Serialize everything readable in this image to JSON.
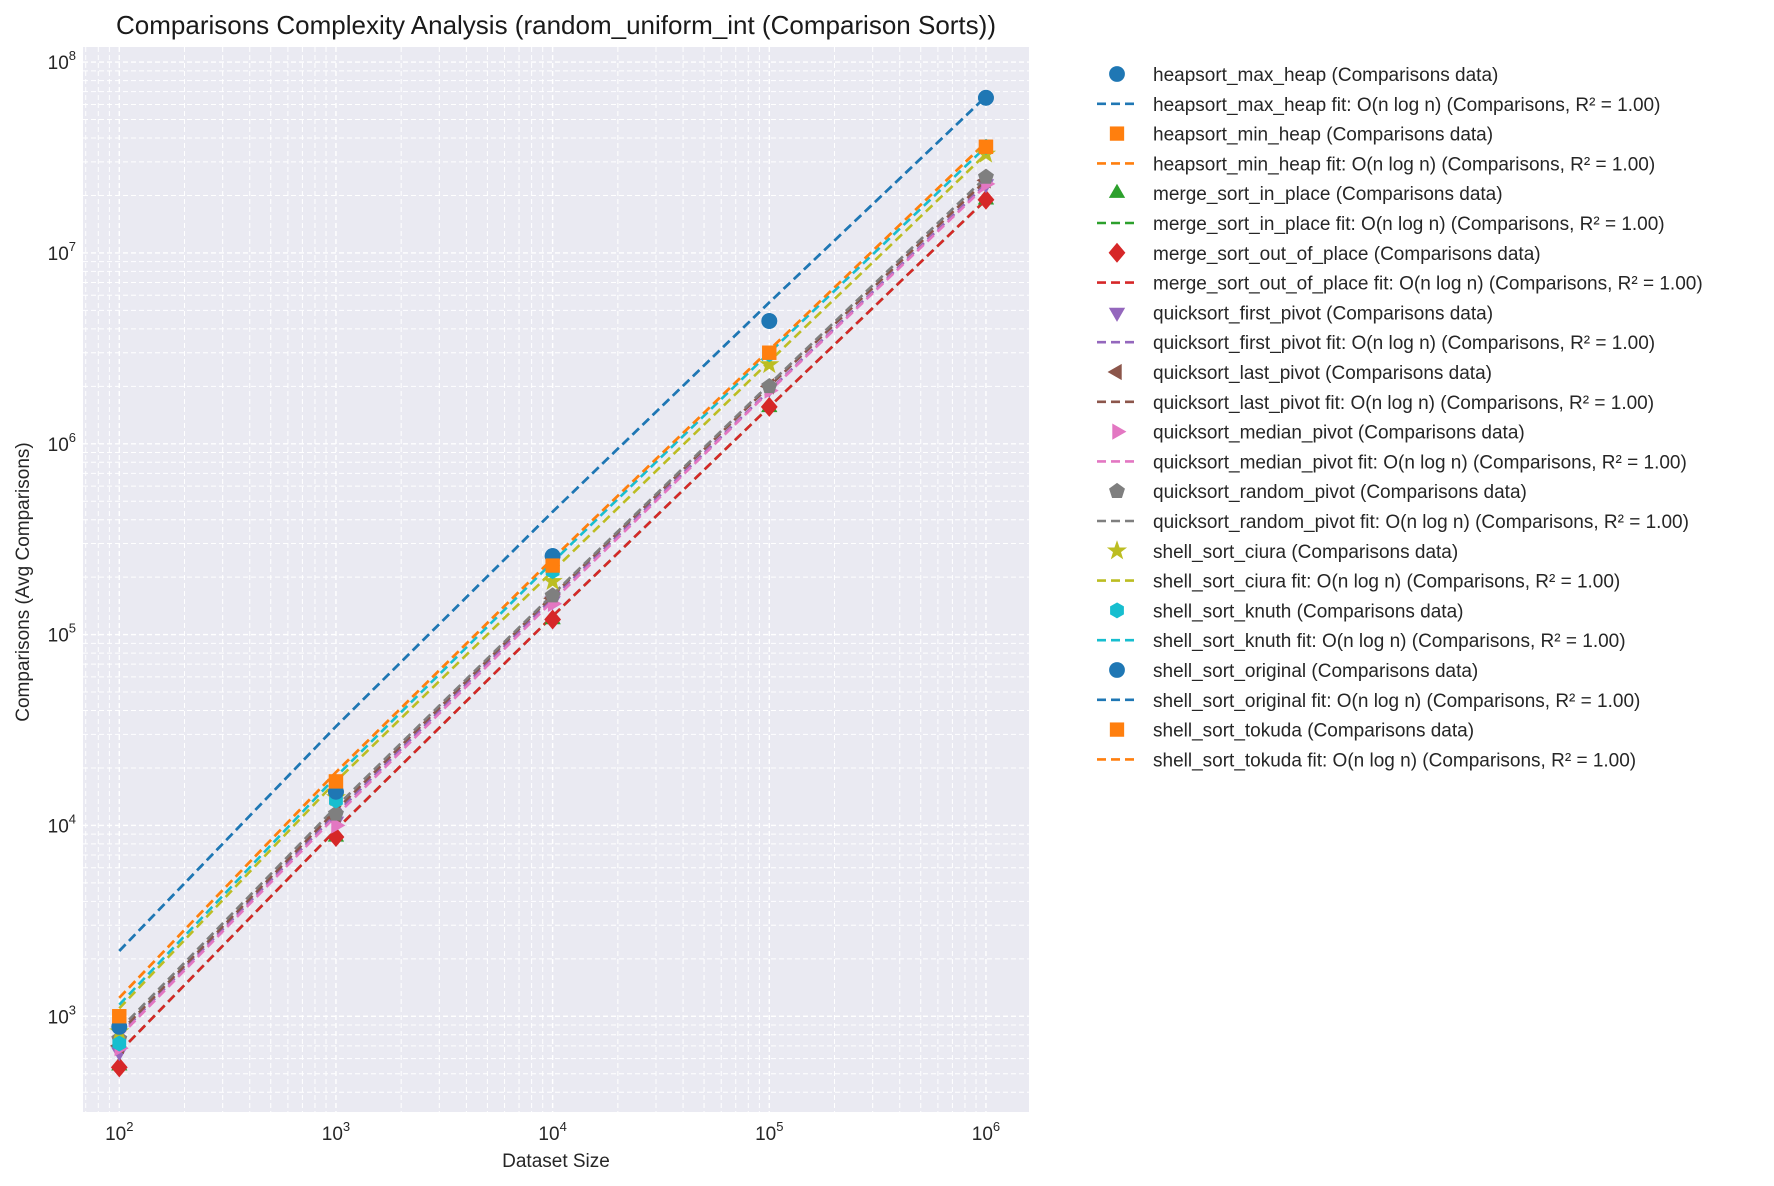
{
  "chart_data": {
    "type": "scatter",
    "title": "Comparisons Complexity Analysis (random_uniform_int (Comparison Sorts))",
    "xlabel": "Dataset Size",
    "ylabel": "Comparisons (Avg Comparisons)",
    "x_scale": "log",
    "y_scale": "log",
    "xlim": [
      68,
      1580000
    ],
    "ylim": [
      315,
      120000000
    ],
    "x_ticks": [
      {
        "value": 100,
        "base": "10",
        "exp": "2"
      },
      {
        "value": 1000,
        "base": "10",
        "exp": "3"
      },
      {
        "value": 10000,
        "base": "10",
        "exp": "4"
      },
      {
        "value": 100000,
        "base": "10",
        "exp": "5"
      },
      {
        "value": 1000000,
        "base": "10",
        "exp": "6"
      }
    ],
    "y_ticks": [
      {
        "value": 1000,
        "base": "10",
        "exp": "3"
      },
      {
        "value": 10000,
        "base": "10",
        "exp": "4"
      },
      {
        "value": 100000,
        "base": "10",
        "exp": "5"
      },
      {
        "value": 1000000,
        "base": "10",
        "exp": "6"
      },
      {
        "value": 10000000,
        "base": "10",
        "exp": "7"
      },
      {
        "value": 100000000,
        "base": "10",
        "exp": "8"
      }
    ],
    "grid": true,
    "legend_position": "outside-right",
    "x": [
      100,
      1000,
      10000,
      100000,
      1000000
    ],
    "series": [
      {
        "name": "heapsort_max_heap",
        "data_label": "heapsort_max_heap (Comparisons data)",
        "fit_label": "heapsort_max_heap fit: O(n log n) (Comparisons, R² = 1.00)",
        "color": "#1f77b4",
        "marker": "circle",
        "values": [
          880,
          15000,
          258000,
          4400000,
          65000000
        ],
        "fit": [
          2200,
          33000,
          440000,
          5500000,
          66000000
        ]
      },
      {
        "name": "heapsort_min_heap",
        "data_label": "heapsort_min_heap (Comparisons data)",
        "fit_label": "heapsort_min_heap fit: O(n log n) (Comparisons, R² = 1.00)",
        "color": "#ff7f0e",
        "marker": "square",
        "values": [
          1000,
          17000,
          230000,
          3000000,
          36000000
        ],
        "fit": [
          1250,
          19000,
          250000,
          3100000,
          38000000
        ]
      },
      {
        "name": "merge_sort_in_place",
        "data_label": "merge_sort_in_place (Comparisons data)",
        "fit_label": "merge_sort_in_place fit: O(n log n) (Comparisons, R² = 1.00)",
        "color": "#2ca02c",
        "marker": "triangle-up",
        "values": [
          550,
          8700,
          120000,
          1550000,
          19000000
        ],
        "fit": [
          650,
          9500,
          125000,
          1560000,
          19000000
        ]
      },
      {
        "name": "merge_sort_out_of_place",
        "data_label": "merge_sort_out_of_place (Comparisons data)",
        "fit_label": "merge_sort_out_of_place fit: O(n log n) (Comparisons, R² = 1.00)",
        "color": "#d62728",
        "marker": "diamond",
        "values": [
          540,
          8700,
          120000,
          1560000,
          19000000
        ],
        "fit": [
          650,
          9500,
          125000,
          1560000,
          19000000
        ]
      },
      {
        "name": "quicksort_first_pivot",
        "data_label": "quicksort_first_pivot (Comparisons data)",
        "fit_label": "quicksort_first_pivot fit: O(n log n) (Comparisons, R² = 1.00)",
        "color": "#9467bd",
        "marker": "triangle-down",
        "values": [
          650,
          10500,
          150000,
          1950000,
          23000000
        ],
        "fit": [
          800,
          11500,
          155000,
          1900000,
          23000000
        ]
      },
      {
        "name": "quicksort_last_pivot",
        "data_label": "quicksort_last_pivot (Comparisons data)",
        "fit_label": "quicksort_last_pivot fit: O(n log n) (Comparisons, R² = 1.00)",
        "color": "#8c564b",
        "marker": "triangle-left",
        "values": [
          700,
          11000,
          155000,
          2000000,
          24000000
        ],
        "fit": [
          820,
          12000,
          160000,
          2000000,
          24000000
        ]
      },
      {
        "name": "quicksort_median_pivot",
        "data_label": "quicksort_median_pivot (Comparisons data)",
        "fit_label": "quicksort_median_pivot fit: O(n log n) (Comparisons, R² = 1.00)",
        "color": "#e377c2",
        "marker": "triangle-right",
        "values": [
          680,
          10000,
          145000,
          1900000,
          23000000
        ],
        "fit": [
          780,
          11200,
          150000,
          1880000,
          22500000
        ]
      },
      {
        "name": "quicksort_random_pivot",
        "data_label": "quicksort_random_pivot (Comparisons data)",
        "fit_label": "quicksort_random_pivot fit: O(n log n) (Comparisons, R² = 1.00)",
        "color": "#7f7f7f",
        "marker": "pentagon",
        "values": [
          760,
          11500,
          160000,
          2000000,
          25000000
        ],
        "fit": [
          850,
          12500,
          162000,
          2050000,
          25000000
        ]
      },
      {
        "name": "shell_sort_ciura",
        "data_label": "shell_sort_ciura (Comparisons data)",
        "fit_label": "shell_sort_ciura fit: O(n log n) (Comparisons, R² = 1.00)",
        "color": "#bcbd22",
        "marker": "star",
        "values": [
          830,
          14000,
          190000,
          2600000,
          33000000
        ],
        "fit": [
          1100,
          17000,
          215000,
          2700000,
          33000000
        ]
      },
      {
        "name": "shell_sort_knuth",
        "data_label": "shell_sort_knuth (Comparisons data)",
        "fit_label": "shell_sort_knuth fit: O(n log n) (Comparisons, R² = 1.00)",
        "color": "#17becf",
        "marker": "hexagon",
        "values": [
          720,
          13500,
          215000,
          2950000,
          36000000
        ],
        "fit": [
          1150,
          18000,
          240000,
          3000000,
          36000000
        ]
      },
      {
        "name": "shell_sort_original",
        "data_label": "shell_sort_original (Comparisons data)",
        "fit_label": "shell_sort_original fit: O(n log n) (Comparisons, R² = 1.00)",
        "color": "#1f77b4",
        "marker": "circle",
        "values": [
          880,
          15000,
          258000,
          4400000,
          65000000
        ],
        "fit": [
          2200,
          33000,
          440000,
          5500000,
          66000000
        ]
      },
      {
        "name": "shell_sort_tokuda",
        "data_label": "shell_sort_tokuda (Comparisons data)",
        "fit_label": "shell_sort_tokuda fit: O(n log n) (Comparisons, R² = 1.00)",
        "color": "#ff7f0e",
        "marker": "square",
        "values": [
          1000,
          17000,
          230000,
          3000000,
          36000000
        ],
        "fit": [
          1250,
          19000,
          250000,
          3100000,
          38000000
        ]
      }
    ]
  }
}
